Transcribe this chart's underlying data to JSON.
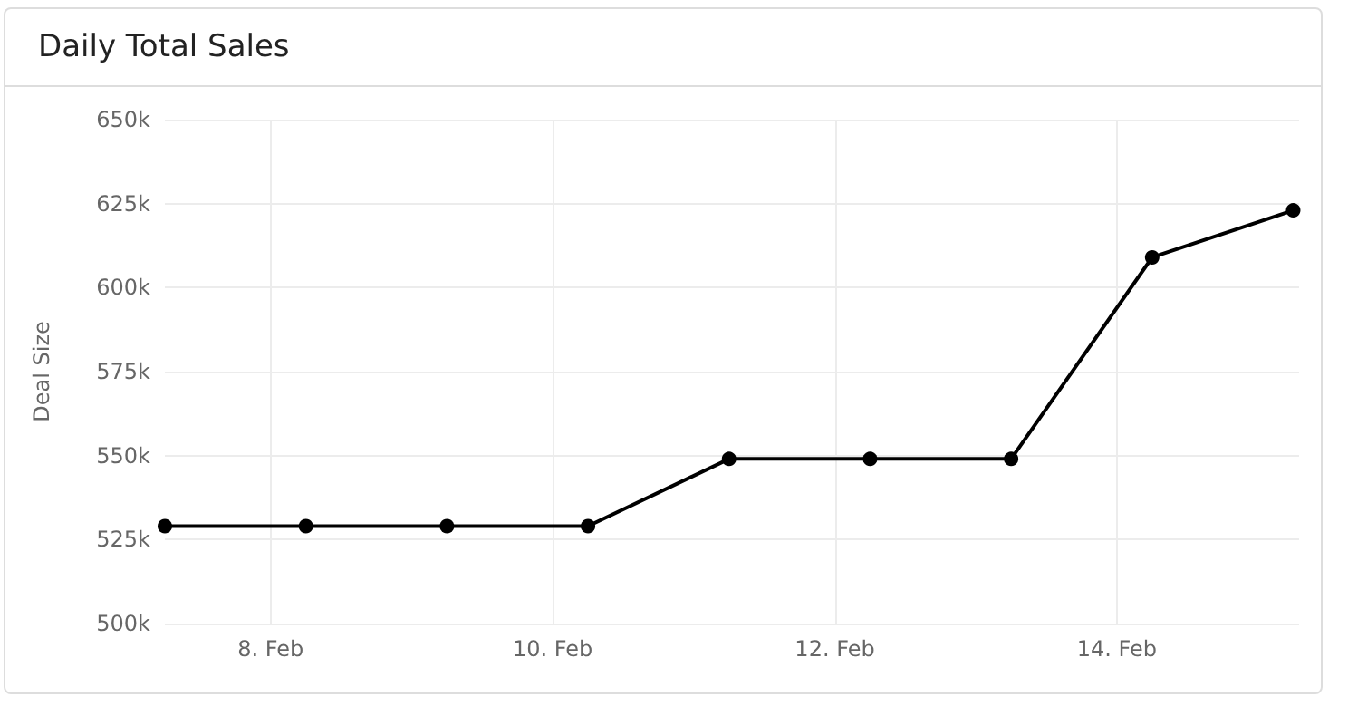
{
  "chart_data": {
    "type": "line",
    "title": "Daily Total Sales",
    "ylabel": "Deal Size",
    "x": [
      "--02-07T06:00",
      "--02-08T06:00",
      "--02-09T06:00",
      "--02-10T06:00",
      "--02-11T06:00",
      "--02-12T06:00",
      "--02-13T06:00",
      "--02-14T06:00",
      "--02-15T06:00"
    ],
    "series": [
      {
        "color": "#000000",
        "values": [
          529000,
          529000,
          529000,
          529000,
          549000,
          549000,
          549000,
          609000,
          623000
        ]
      }
    ],
    "xlim": [
      "--02-07T06:00",
      "--02-15T07:00"
    ],
    "xticks": [
      {
        "value": "--02-08",
        "label": "8. Feb"
      },
      {
        "value": "--02-10",
        "label": "10. Feb"
      },
      {
        "value": "--02-12",
        "label": "12. Feb"
      },
      {
        "value": "--02-14",
        "label": "14. Feb"
      }
    ],
    "ylim": [
      500000,
      650000
    ],
    "yticks": [
      {
        "value": 500000,
        "label": "500k"
      },
      {
        "value": 525000,
        "label": "525k"
      },
      {
        "value": 550000,
        "label": "550k"
      },
      {
        "value": 575000,
        "label": "575k"
      },
      {
        "value": 600000,
        "label": "600k"
      },
      {
        "value": 625000,
        "label": "625k"
      },
      {
        "value": 650000,
        "label": "650k"
      }
    ],
    "grid": true,
    "marker": "circle",
    "line_style": "solid"
  }
}
